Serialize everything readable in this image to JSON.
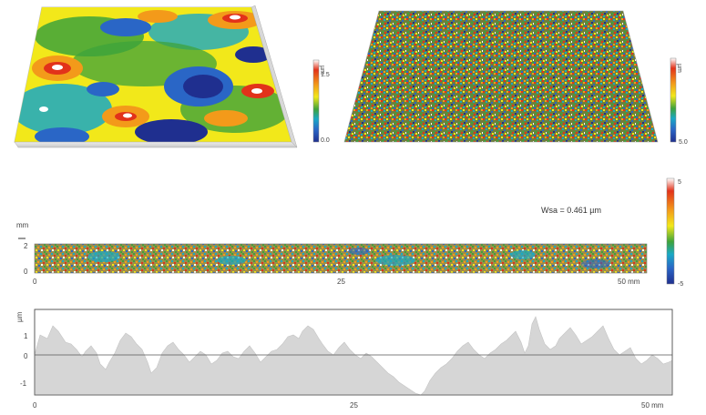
{
  "top_left_surface": {
    "colorbar": {
      "top": "µm",
      "top_value": "1.5",
      "bottom_value": "0.0"
    }
  },
  "top_right_surface": {
    "colorbar": {
      "top": "µm",
      "top_value": "",
      "bottom_value": "5.0"
    }
  },
  "strip_panel": {
    "annotation": "Wsa = 0.461 µm",
    "y_unit": "mm",
    "y_ticks": [
      "2",
      "0"
    ],
    "x_ticks": [
      "0",
      "25",
      "50 mm"
    ],
    "colorbar": {
      "top": "5",
      "bottom": "-5"
    }
  },
  "profile_panel": {
    "y_unit": "µm",
    "y_ticks": [
      "1",
      "0",
      "-1"
    ],
    "x_ticks": [
      "0",
      "25",
      "50 mm"
    ]
  },
  "colors": {
    "dark_blue": "#1f2f8f",
    "blue": "#2a66c6",
    "cyan": "#19a8c6",
    "green": "#3ea33b",
    "yellow": "#f2e81a",
    "orange": "#f39a1a",
    "red": "#e2321a",
    "white": "#ffffff",
    "profile_fill": "#d6d6d6"
  }
}
